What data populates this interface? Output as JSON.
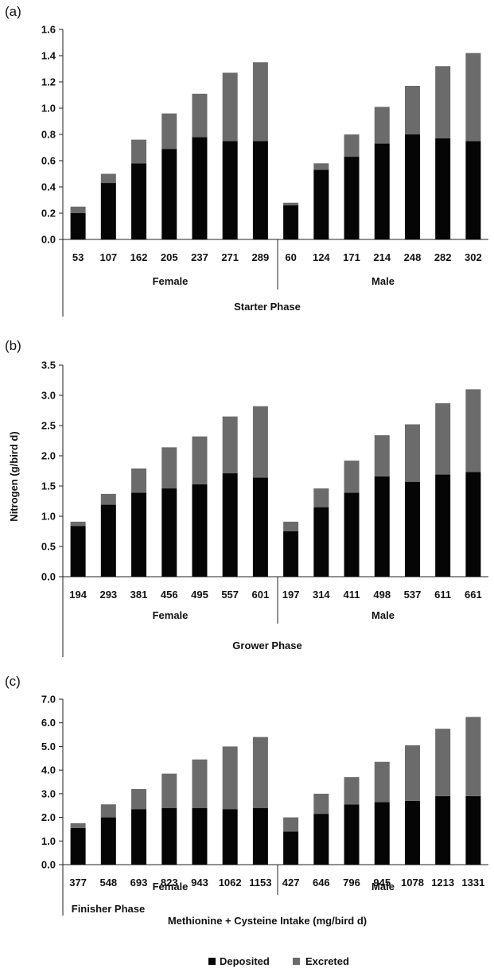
{
  "colors": {
    "deposited": "#050505",
    "excreted": "#6b6b6b",
    "axis": "#222222"
  },
  "figure": {
    "ylabel": "Nitrogen (g/bird d)",
    "xlabel": "Methionine + Cysteine Intake (mg/bird d)"
  },
  "legend": [
    {
      "name": "Deposited",
      "color_key": "deposited"
    },
    {
      "name": "Excreted",
      "color_key": "excreted"
    }
  ],
  "chart_data": [
    {
      "type": "bar",
      "stacked": true,
      "panel": "(a)",
      "phase": "Starter Phase",
      "ylim": [
        0,
        1.6
      ],
      "yticks": [
        "0.0",
        "0.2",
        "0.4",
        "0.6",
        "0.8",
        "1.0",
        "1.2",
        "1.4",
        "1.6"
      ],
      "groups": [
        "Female",
        "Male"
      ],
      "categories": [
        "53",
        "107",
        "162",
        "205",
        "237",
        "271",
        "289",
        "60",
        "124",
        "171",
        "214",
        "248",
        "282",
        "302"
      ],
      "series": [
        {
          "name": "Deposited",
          "values": [
            0.2,
            0.43,
            0.58,
            0.69,
            0.78,
            0.75,
            0.75,
            0.26,
            0.53,
            0.63,
            0.73,
            0.8,
            0.77,
            0.75
          ]
        },
        {
          "name": "Excreted",
          "values": [
            0.05,
            0.07,
            0.18,
            0.27,
            0.33,
            0.52,
            0.6,
            0.02,
            0.05,
            0.17,
            0.28,
            0.37,
            0.55,
            0.67
          ]
        }
      ]
    },
    {
      "type": "bar",
      "stacked": true,
      "panel": "(b)",
      "phase": "Grower Phase",
      "ylim": [
        0,
        3.5
      ],
      "yticks": [
        "0.0",
        "0.5",
        "1.0",
        "1.5",
        "2.0",
        "2.5",
        "3.0",
        "3.5"
      ],
      "groups": [
        "Female",
        "Male"
      ],
      "categories": [
        "194",
        "293",
        "381",
        "456",
        "495",
        "557",
        "601",
        "197",
        "314",
        "411",
        "498",
        "537",
        "611",
        "661"
      ],
      "series": [
        {
          "name": "Deposited",
          "values": [
            0.84,
            1.19,
            1.39,
            1.46,
            1.53,
            1.71,
            1.64,
            0.75,
            1.15,
            1.39,
            1.66,
            1.57,
            1.69,
            1.73
          ]
        },
        {
          "name": "Excreted",
          "values": [
            0.07,
            0.18,
            0.4,
            0.68,
            0.79,
            0.94,
            1.18,
            0.16,
            0.31,
            0.53,
            0.68,
            0.95,
            1.18,
            1.37
          ]
        }
      ]
    },
    {
      "type": "bar",
      "stacked": true,
      "panel": "(c)",
      "phase": "Finisher Phase",
      "ylim": [
        0,
        7.0
      ],
      "yticks": [
        "0.0",
        "1.0",
        "2.0",
        "3.0",
        "4.0",
        "5.0",
        "6.0",
        "7.0"
      ],
      "groups": [
        "Female",
        "Male"
      ],
      "categories": [
        "377",
        "548",
        "693",
        "823",
        "943",
        "1062",
        "1153",
        "427",
        "646",
        "796",
        "945",
        "1078",
        "1213",
        "1331"
      ],
      "series": [
        {
          "name": "Deposited",
          "values": [
            1.55,
            2.0,
            2.35,
            2.4,
            2.4,
            2.35,
            2.4,
            1.4,
            2.15,
            2.55,
            2.65,
            2.7,
            2.9,
            2.9
          ]
        },
        {
          "name": "Excreted",
          "values": [
            0.2,
            0.55,
            0.85,
            1.45,
            2.05,
            2.65,
            3.0,
            0.6,
            0.85,
            1.15,
            1.7,
            2.35,
            2.85,
            3.35
          ]
        }
      ]
    }
  ]
}
